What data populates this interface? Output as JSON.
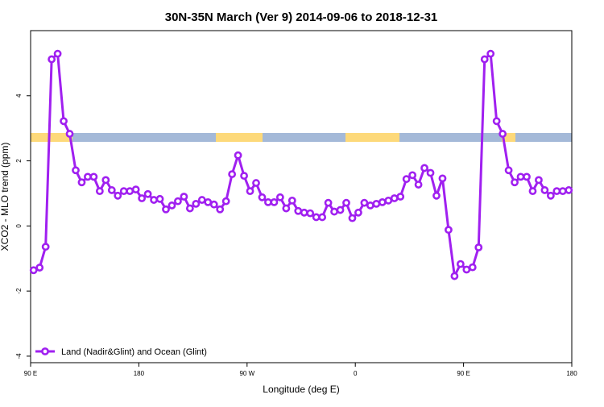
{
  "chart_data": {
    "type": "line",
    "title": "30N-35N March (Ver 9)   2014-09-06 to 2018-12-31",
    "x_label": "Longitude (deg E)",
    "y_label": "XCO2 - MLO trend (ppm)",
    "xlim": [
      90,
      540
    ],
    "ylim": [
      -4.2,
      6.0
    ],
    "xticks": [
      {
        "value": 90,
        "label": "90 E"
      },
      {
        "value": 180,
        "label": "180"
      },
      {
        "value": 270,
        "label": "90 W"
      },
      {
        "value": 360,
        "label": "0"
      },
      {
        "value": 450,
        "label": "90 E"
      },
      {
        "value": 540,
        "label": "180"
      }
    ],
    "yticks": [
      -4,
      -2,
      0,
      2,
      4
    ],
    "legend": "bottomleft",
    "x": [
      92.5,
      97.5,
      102.5,
      107.5,
      112.5,
      117.5,
      122.5,
      127.5,
      132.5,
      137.5,
      142.5,
      147.5,
      152.5,
      157.5,
      162.5,
      167.5,
      172.5,
      177.5,
      182.5,
      187.5,
      192.5,
      197.5,
      202.5,
      207.5,
      212.5,
      217.5,
      222.5,
      227.5,
      232.5,
      237.5,
      242.5,
      247.5,
      252.5,
      257.5,
      262.5,
      267.5,
      272.5,
      277.5,
      282.5,
      287.5,
      292.5,
      297.5,
      302.5,
      307.5,
      312.5,
      317.5,
      322.5,
      327.5,
      332.5,
      337.5,
      342.5,
      347.5,
      352.5,
      357.5,
      362.5,
      367.5,
      372.5,
      377.5,
      382.5,
      387.5,
      392.5,
      397.5,
      402.5,
      407.5,
      412.5,
      417.5,
      422.5,
      427.5,
      432.5,
      437.5,
      442.5,
      447.5,
      452.5,
      457.5,
      462.5,
      467.5,
      472.5,
      477.5,
      482.5,
      487.5,
      492.5,
      497.5,
      502.5,
      507.5,
      512.5,
      517.5,
      522.5,
      527.5,
      532.5,
      537.5
    ],
    "series": [
      {
        "name": "Land (Nadir&Glint) and Ocean (Glint)",
        "color": "#a020f0",
        "values": [
          -1.36,
          -1.28,
          -0.64,
          5.12,
          5.29,
          3.22,
          2.83,
          1.71,
          1.34,
          1.51,
          1.51,
          1.07,
          1.41,
          1.1,
          0.93,
          1.07,
          1.07,
          1.12,
          0.85,
          0.98,
          0.8,
          0.83,
          0.51,
          0.63,
          0.76,
          0.9,
          0.54,
          0.68,
          0.8,
          0.73,
          0.66,
          0.51,
          0.76,
          1.59,
          2.17,
          1.54,
          1.07,
          1.32,
          0.88,
          0.73,
          0.73,
          0.88,
          0.54,
          0.78,
          0.46,
          0.41,
          0.39,
          0.27,
          0.27,
          0.71,
          0.44,
          0.49,
          0.71,
          0.24,
          0.41,
          0.71,
          0.63,
          0.68,
          0.73,
          0.78,
          0.85,
          0.9,
          1.44,
          1.56,
          1.27,
          1.78,
          1.63,
          0.93,
          1.46,
          -0.12,
          -1.54,
          -1.17,
          -1.34,
          -1.27,
          -0.66,
          5.12,
          5.29,
          3.22,
          2.83,
          1.71,
          1.34,
          1.51,
          1.51,
          1.07,
          1.41,
          1.1,
          0.93,
          1.07,
          1.07,
          1.1
        ]
      }
    ]
  }
}
